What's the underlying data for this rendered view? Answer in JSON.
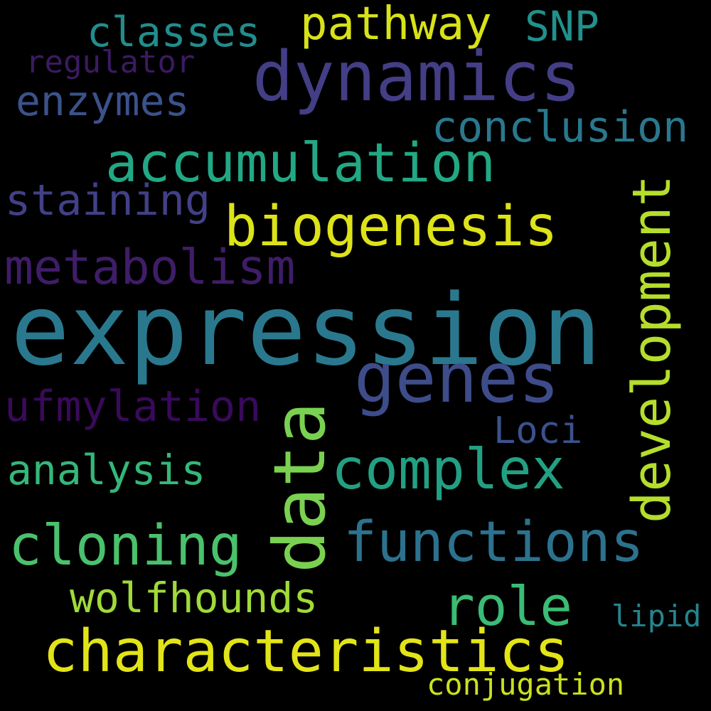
{
  "background": "#000000",
  "words": [
    {
      "id": "expression",
      "text": "expression",
      "color": "#2a788e"
    },
    {
      "id": "dynamics",
      "text": "dynamics",
      "color": "#433e85"
    },
    {
      "id": "genes",
      "text": "genes",
      "color": "#3e4c8a"
    },
    {
      "id": "characteristics",
      "text": "characteristics",
      "color": "#e2e418"
    },
    {
      "id": "biogenesis",
      "text": "biogenesis",
      "color": "#dde318"
    },
    {
      "id": "accumulation",
      "text": "accumulation",
      "color": "#22a884"
    },
    {
      "id": "functions",
      "text": "functions",
      "color": "#2c728e"
    },
    {
      "id": "cloning",
      "text": "cloning",
      "color": "#4ac16d"
    },
    {
      "id": "complex",
      "text": "complex",
      "color": "#23a083"
    },
    {
      "id": "role",
      "text": "role",
      "color": "#3bbb75"
    },
    {
      "id": "metabolism",
      "text": "metabolism",
      "color": "#3f1d68"
    },
    {
      "id": "conclusion",
      "text": "conclusion",
      "color": "#2a788e"
    },
    {
      "id": "pathway",
      "text": "pathway",
      "color": "#d8e219"
    },
    {
      "id": "classes",
      "text": "classes",
      "color": "#228d8d"
    },
    {
      "id": "SNP",
      "text": "SNP",
      "color": "#21918c"
    },
    {
      "id": "ufmylation",
      "text": "ufmylation",
      "color": "#3a0a5a"
    },
    {
      "id": "staining",
      "text": "staining",
      "color": "#424086"
    },
    {
      "id": "enzymes",
      "text": "enzymes",
      "color": "#3b528b"
    },
    {
      "id": "analysis",
      "text": "analysis",
      "color": "#35b779"
    },
    {
      "id": "wolfhounds",
      "text": "wolfhounds",
      "color": "#a0da39"
    },
    {
      "id": "Loci",
      "text": "Loci",
      "color": "#3b528b"
    },
    {
      "id": "regulator",
      "text": "regulator",
      "color": "#3c1a62"
    },
    {
      "id": "lipid",
      "text": "lipid",
      "color": "#25848e"
    },
    {
      "id": "conjugation",
      "text": "conjugation",
      "color": "#cae11f"
    },
    {
      "id": "data",
      "text": "data",
      "color": "#7ad151"
    },
    {
      "id": "development",
      "text": "development",
      "color": "#b5de2b"
    }
  ]
}
